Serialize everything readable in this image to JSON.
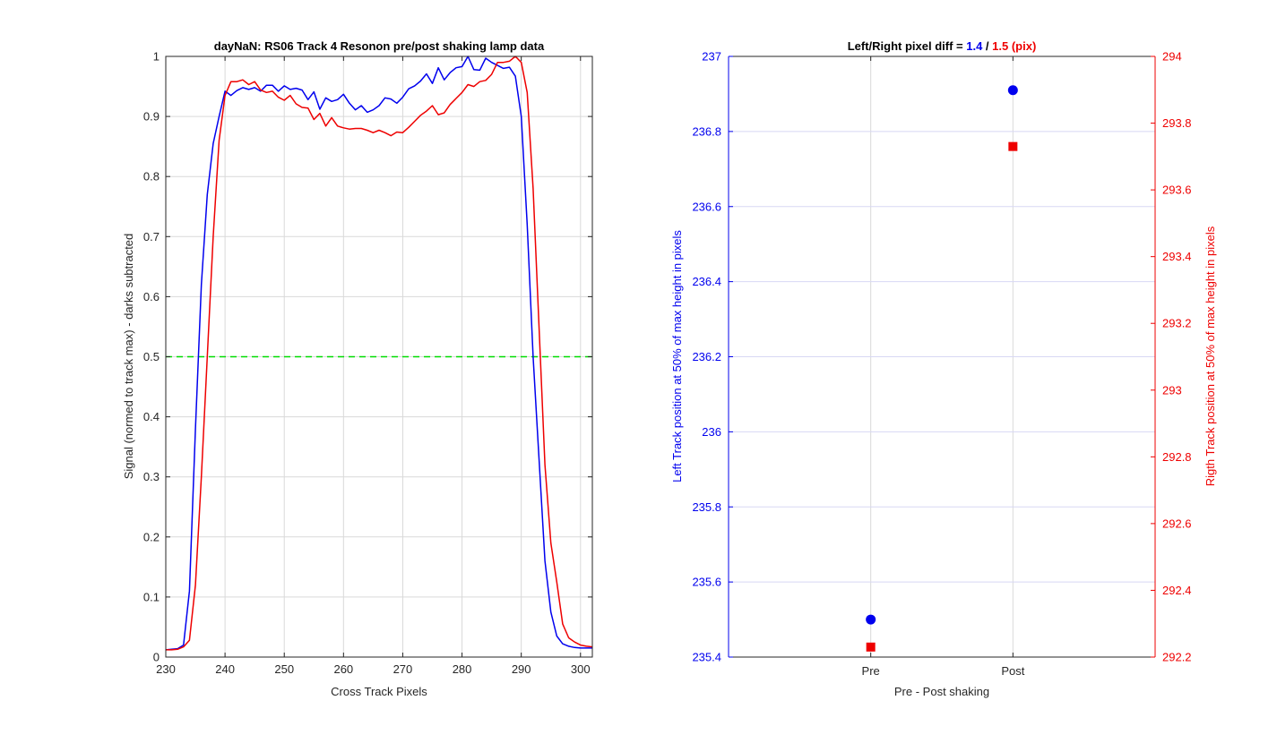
{
  "chart_data": [
    {
      "type": "line",
      "title": "dayNaN: RS06  Track 4 Resonon pre/post shaking lamp data",
      "xlabel": "Cross Track Pixels",
      "ylabel": "Signal (normed to track max) - darks subtracted",
      "xlim": [
        230,
        302
      ],
      "ylim": [
        0,
        1
      ],
      "xticks": [
        230,
        240,
        250,
        260,
        270,
        280,
        290,
        300
      ],
      "yticks": [
        0,
        0.1,
        0.2,
        0.3,
        0.4,
        0.5,
        0.6,
        0.7,
        0.8,
        0.9,
        1
      ],
      "grid": true,
      "reference_line": {
        "y": 0.5,
        "color": "#00dd00",
        "style": "dashed"
      },
      "series": [
        {
          "color": "#0000ee",
          "x": [
            230,
            231,
            232,
            233,
            234,
            235,
            236,
            237,
            238,
            239,
            240,
            241,
            242,
            243,
            244,
            245,
            246,
            247,
            248,
            249,
            250,
            251,
            252,
            253,
            254,
            255,
            256,
            257,
            258,
            259,
            260,
            261,
            262,
            263,
            264,
            265,
            266,
            267,
            268,
            269,
            270,
            271,
            272,
            273,
            274,
            275,
            276,
            277,
            278,
            279,
            280,
            281,
            282,
            283,
            284,
            285,
            286,
            287,
            288,
            289,
            290,
            291,
            292,
            293,
            294,
            295,
            296,
            297,
            298,
            299,
            300,
            301,
            302
          ],
          "values": [
            0.012,
            0.013,
            0.014,
            0.02,
            0.11,
            0.38,
            0.62,
            0.77,
            0.855,
            0.9,
            0.942,
            0.935,
            0.943,
            0.948,
            0.945,
            0.948,
            0.942,
            0.952,
            0.952,
            0.942,
            0.951,
            0.945,
            0.947,
            0.944,
            0.928,
            0.941,
            0.912,
            0.931,
            0.925,
            0.928,
            0.937,
            0.922,
            0.911,
            0.918,
            0.907,
            0.911,
            0.918,
            0.931,
            0.929,
            0.922,
            0.932,
            0.946,
            0.951,
            0.959,
            0.971,
            0.955,
            0.981,
            0.961,
            0.973,
            0.981,
            0.983,
            1.0,
            0.978,
            0.977,
            0.997,
            0.99,
            0.985,
            0.98,
            0.982,
            0.967,
            0.9,
            0.72,
            0.5,
            0.33,
            0.16,
            0.075,
            0.035,
            0.022,
            0.018,
            0.016,
            0.015,
            0.015,
            0.015
          ]
        },
        {
          "color": "#ee0000",
          "x": [
            230,
            231,
            232,
            233,
            234,
            235,
            236,
            237,
            238,
            239,
            240,
            241,
            242,
            243,
            244,
            245,
            246,
            247,
            248,
            249,
            250,
            251,
            252,
            253,
            254,
            255,
            256,
            257,
            258,
            259,
            260,
            261,
            262,
            263,
            264,
            265,
            266,
            267,
            268,
            269,
            270,
            271,
            272,
            273,
            274,
            275,
            276,
            277,
            278,
            279,
            280,
            281,
            282,
            283,
            284,
            285,
            286,
            287,
            288,
            289,
            290,
            291,
            292,
            293,
            294,
            295,
            296,
            297,
            298,
            299,
            300,
            301,
            302
          ],
          "values": [
            0.012,
            0.012,
            0.013,
            0.017,
            0.028,
            0.12,
            0.3,
            0.5,
            0.7,
            0.86,
            0.935,
            0.958,
            0.958,
            0.961,
            0.953,
            0.958,
            0.944,
            0.94,
            0.942,
            0.932,
            0.927,
            0.935,
            0.921,
            0.915,
            0.914,
            0.895,
            0.905,
            0.884,
            0.898,
            0.884,
            0.881,
            0.879,
            0.88,
            0.88,
            0.877,
            0.873,
            0.877,
            0.873,
            0.868,
            0.874,
            0.873,
            0.882,
            0.892,
            0.902,
            0.909,
            0.918,
            0.903,
            0.906,
            0.92,
            0.93,
            0.94,
            0.953,
            0.95,
            0.958,
            0.96,
            0.97,
            0.99,
            0.99,
            0.992,
            1.0,
            0.99,
            0.94,
            0.78,
            0.55,
            0.32,
            0.19,
            0.125,
            0.055,
            0.032,
            0.025,
            0.02,
            0.018,
            0.017
          ]
        }
      ]
    },
    {
      "type": "scatter",
      "title": {
        "prefix": "Left/Right pixel diff = ",
        "left_value": "1.4",
        "separator": " / ",
        "right_value": "1.5 (pix)"
      },
      "xlabel": "Pre - Post shaking",
      "categories": [
        "Pre",
        "Post"
      ],
      "ylabel_left": "Left Track position at 50% of max height in pixels",
      "ylabel_right": "Rigth Track position at 50% of max height in pixels",
      "ylim_left": [
        235.4,
        237
      ],
      "ylim_right": [
        292.2,
        294
      ],
      "yticks_left": [
        235.4,
        235.6,
        235.8,
        236,
        236.2,
        236.4,
        236.6,
        236.8,
        237
      ],
      "yticks_right": [
        292.2,
        292.4,
        292.6,
        292.8,
        293,
        293.2,
        293.4,
        293.6,
        293.8,
        294
      ],
      "grid": true,
      "series": [
        {
          "axis": "left",
          "marker": "circle",
          "color": "#0000ee",
          "values": [
            235.5,
            236.91
          ]
        },
        {
          "axis": "right",
          "marker": "square",
          "color": "#ee0000",
          "values": [
            292.23,
            293.73
          ]
        }
      ]
    }
  ]
}
